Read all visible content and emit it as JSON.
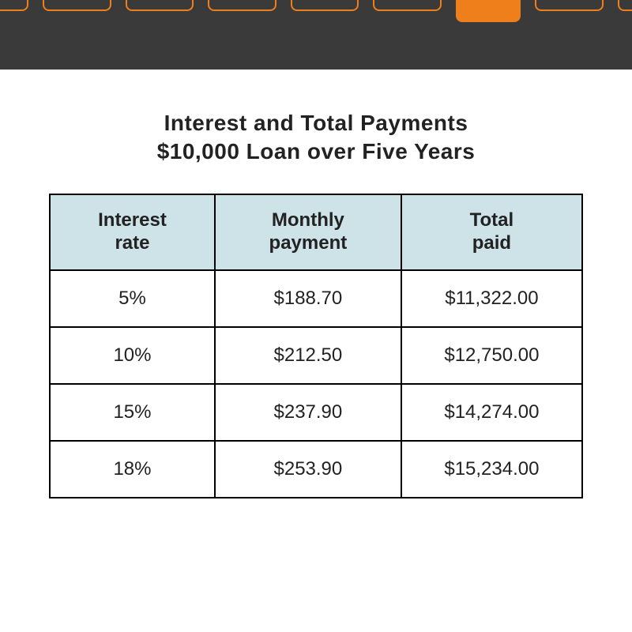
{
  "nav": {
    "tab_count": 9,
    "active_index": 6,
    "bar_bg": "#3a3a3a",
    "tab_border_color": "#ef7f1a",
    "tab_active_bg": "#ef7f1a"
  },
  "title": {
    "line1": "Interest and Total Payments",
    "line2": "$10,000 Loan over Five Years",
    "fontsize": 28,
    "color": "#222222"
  },
  "table": {
    "type": "table",
    "header_bg": "#cde3e8",
    "border_color": "#000000",
    "cell_fontsize": 24,
    "header_fontsize": 24,
    "columns": [
      {
        "label": "Interest rate",
        "width_pct": 31,
        "align": "center"
      },
      {
        "label": "Monthly payment",
        "width_pct": 35,
        "align": "center"
      },
      {
        "label": "Total paid",
        "width_pct": 34,
        "align": "center"
      }
    ],
    "rows": [
      [
        "5%",
        "$188.70",
        "$11,322.00"
      ],
      [
        "10%",
        "$212.50",
        "$12,750.00"
      ],
      [
        "15%",
        "$237.90",
        "$14,274.00"
      ],
      [
        "18%",
        "$253.90",
        "$15,234.00"
      ]
    ]
  },
  "cutoff_text": ""
}
